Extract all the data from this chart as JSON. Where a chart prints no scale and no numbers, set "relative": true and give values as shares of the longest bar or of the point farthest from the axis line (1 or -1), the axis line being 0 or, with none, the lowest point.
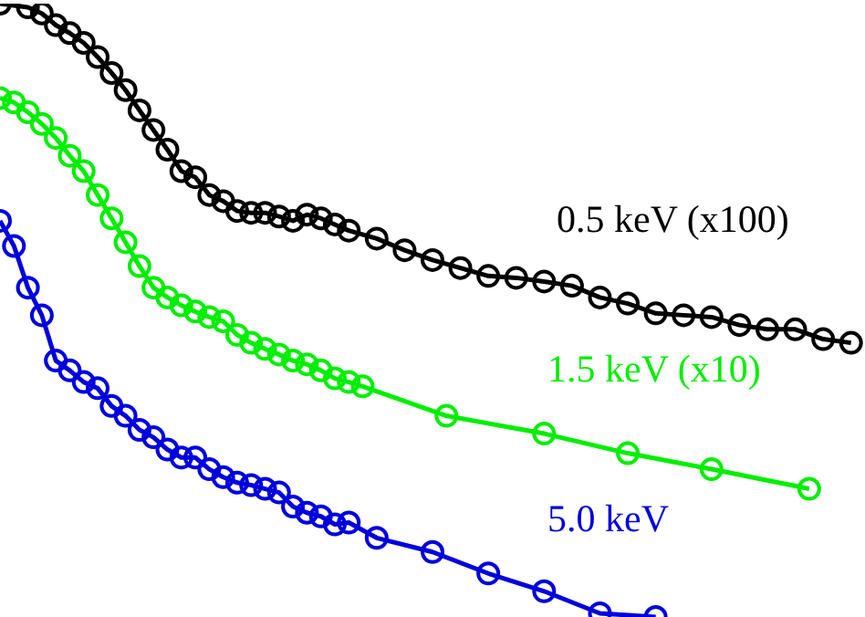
{
  "chart_data": {
    "type": "line",
    "relative": true,
    "marker": "circle",
    "legend": "right",
    "categories": [
      null,
      null,
      null,
      null,
      null,
      null,
      null,
      null,
      null,
      null,
      null,
      null,
      null,
      null,
      null,
      null,
      null,
      null,
      null,
      null,
      null,
      null,
      null,
      null,
      null,
      null,
      null,
      null,
      null,
      null,
      null,
      null,
      null,
      null,
      null,
      null,
      null,
      null,
      null,
      null,
      null,
      null,
      null,
      null,
      null,
      null,
      null,
      null,
      null,
      null,
      null,
      null,
      null,
      null,
      null,
      null,
      null,
      null,
      null,
      null,
      null,
      null,
      null
    ],
    "series": [
      {
        "name": "0.5 keV (x100)",
        "color": "#000000",
        "values": [
          1,
          null,
          0.994,
          0.984,
          0.965,
          0.952,
          0.936,
          0.913,
          0.887,
          0.859,
          0.826,
          0.794,
          0.762,
          0.727,
          0.717,
          0.688,
          0.678,
          0.662,
          0.659,
          0.659,
          0.653,
          0.646,
          0.656,
          0.65,
          0.64,
          0.63,
          null,
          0.617,
          null,
          0.598,
          null,
          0.582,
          null,
          0.569,
          null,
          0.556,
          null,
          0.553,
          null,
          0.547,
          null,
          0.54,
          null,
          0.521,
          null,
          0.511,
          null,
          0.495,
          null,
          0.492,
          null,
          0.489,
          null,
          0.476,
          null,
          0.469,
          null,
          0.469,
          null,
          0.453,
          null,
          0.447,
          null
        ]
      },
      {
        "name": "1.5 keV (x10)",
        "color": "#00ee00",
        "values": [
          0.846,
          0.839,
          0.823,
          0.804,
          0.781,
          0.752,
          0.727,
          0.688,
          0.65,
          0.611,
          0.572,
          0.537,
          0.521,
          0.508,
          0.498,
          0.489,
          0.482,
          0.46,
          0.447,
          0.437,
          0.428,
          0.418,
          0.412,
          0.402,
          0.389,
          0.383,
          0.376,
          null,
          null,
          null,
          null,
          null,
          0.328,
          null,
          null,
          null,
          null,
          null,
          null,
          0.299,
          null,
          null,
          null,
          null,
          null,
          0.267,
          null,
          null,
          null,
          null,
          null,
          0.241,
          null,
          null,
          null,
          null,
          null,
          null,
          0.209,
          null,
          null,
          null,
          null
        ]
      },
      {
        "name": "5.0 keV",
        "color": "#0000dd",
        "values": [
          0.646,
          0.605,
          0.537,
          0.492,
          0.418,
          0.402,
          0.383,
          0.373,
          0.344,
          0.328,
          0.305,
          0.293,
          0.273,
          0.26,
          0.26,
          0.241,
          0.228,
          0.219,
          0.215,
          0.209,
          0.203,
          0.18,
          0.17,
          0.164,
          0.151,
          0.154,
          null,
          0.129,
          null,
          null,
          null,
          0.106,
          null,
          null,
          null,
          0.071,
          null,
          null,
          null,
          0.042,
          null,
          null,
          null,
          0.006,
          null,
          null,
          null,
          0,
          null,
          null,
          null,
          null,
          null,
          null,
          null,
          null,
          null,
          null,
          null,
          null,
          null,
          null,
          null
        ]
      }
    ]
  }
}
